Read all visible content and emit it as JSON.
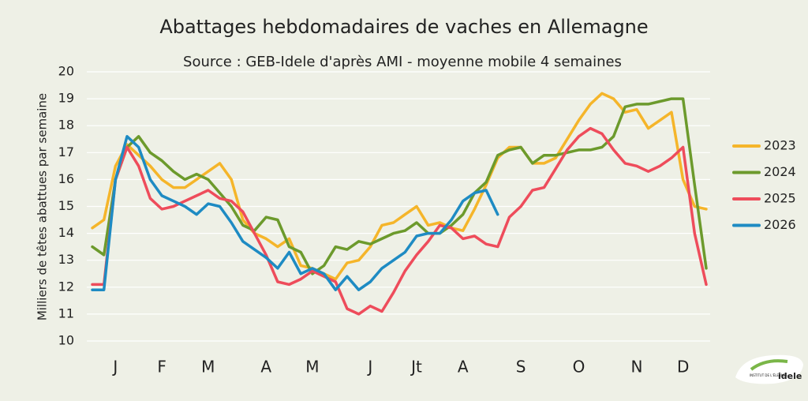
{
  "chart_data": {
    "type": "line",
    "title": "Abattages hebdomadaires de vaches en Allemagne",
    "subtitle": "Source : GEB-Idele d'après AMI - moyenne mobile 4 semaines",
    "y_label": "Milliers de têtes abattues par semaine",
    "categories": [
      null,
      null,
      "J",
      null,
      null,
      null,
      "F",
      null,
      null,
      null,
      "M",
      null,
      null,
      null,
      null,
      "A",
      null,
      null,
      null,
      "M",
      null,
      null,
      null,
      null,
      "J",
      null,
      null,
      null,
      "Jt",
      null,
      null,
      null,
      "A",
      null,
      null,
      null,
      null,
      "S",
      null,
      null,
      null,
      null,
      "O",
      null,
      null,
      null,
      null,
      "N",
      null,
      null,
      null,
      "D",
      null,
      null
    ],
    "ylim": [
      10,
      20
    ],
    "yticks": [
      10,
      11,
      12,
      13,
      14,
      15,
      16,
      17,
      18,
      19,
      20
    ],
    "grid": true,
    "legend": "right",
    "series": [
      {
        "name": "2023",
        "color": "#f5b52a",
        "values": [
          14.2,
          14.5,
          16.5,
          17.3,
          16.9,
          16.5,
          16.0,
          15.7,
          15.7,
          16.0,
          16.3,
          16.6,
          16.0,
          14.5,
          14.0,
          13.8,
          13.5,
          13.8,
          12.8,
          12.7,
          12.5,
          12.3,
          12.9,
          13.0,
          13.5,
          14.3,
          14.4,
          14.7,
          15.0,
          14.3,
          14.4,
          14.2,
          14.1,
          14.9,
          15.8,
          16.8,
          17.2,
          17.2,
          16.6,
          16.6,
          16.8,
          17.5,
          18.2,
          18.8,
          19.2,
          19.0,
          18.5,
          18.6,
          17.9,
          18.2,
          18.5,
          16.0,
          15.0,
          14.9
        ]
      },
      {
        "name": "2024",
        "color": "#6c9a2c",
        "values": [
          13.5,
          13.2,
          16.0,
          17.2,
          17.6,
          17.0,
          16.7,
          16.3,
          16.0,
          16.2,
          16.0,
          15.5,
          15.0,
          14.3,
          14.1,
          14.6,
          14.5,
          13.5,
          13.3,
          12.5,
          12.8,
          13.5,
          13.4,
          13.7,
          13.6,
          13.8,
          14.0,
          14.1,
          14.4,
          14.0,
          14.0,
          14.3,
          14.7,
          15.5,
          15.9,
          16.9,
          17.1,
          17.2,
          16.6,
          16.9,
          16.9,
          17.0,
          17.1,
          17.1,
          17.2,
          17.6,
          18.7,
          18.8,
          18.8,
          18.9,
          19.0,
          19.0,
          15.8,
          12.7
        ]
      },
      {
        "name": "2025",
        "color": "#ee4c5b",
        "values": [
          12.1,
          12.1,
          16.0,
          17.2,
          16.5,
          15.3,
          14.9,
          15.0,
          15.2,
          15.4,
          15.6,
          15.3,
          15.2,
          14.8,
          14.0,
          13.2,
          12.2,
          12.1,
          12.3,
          12.6,
          12.4,
          12.2,
          11.2,
          11.0,
          11.3,
          11.1,
          11.8,
          12.6,
          13.2,
          13.7,
          14.3,
          14.2,
          13.8,
          13.9,
          13.6,
          13.5,
          14.6,
          15.0,
          15.6,
          15.7,
          16.4,
          17.1,
          17.6,
          17.9,
          17.7,
          17.1,
          16.6,
          16.5,
          16.3,
          16.5,
          16.8,
          17.2,
          14.0,
          12.1
        ]
      },
      {
        "name": "2026",
        "color": "#1e8bc3",
        "values": [
          11.9,
          11.9,
          16.0,
          17.6,
          17.2,
          16.0,
          15.4,
          15.2,
          15.0,
          14.7,
          15.1,
          15.0,
          14.4,
          13.7,
          13.4,
          13.1,
          12.7,
          13.3,
          12.5,
          12.7,
          12.5,
          11.9,
          12.4,
          11.9,
          12.2,
          12.7,
          13.0,
          13.3,
          13.9,
          14.0,
          14.0,
          14.5,
          15.2,
          15.5,
          15.6,
          14.7,
          null,
          null,
          null,
          null,
          null,
          null,
          null,
          null,
          null,
          null,
          null,
          null,
          null,
          null,
          null,
          null,
          null,
          null
        ]
      }
    ],
    "logo": {
      "top": "INSTITUT DE L'ÉLEVAGE",
      "brand": "idele"
    }
  }
}
